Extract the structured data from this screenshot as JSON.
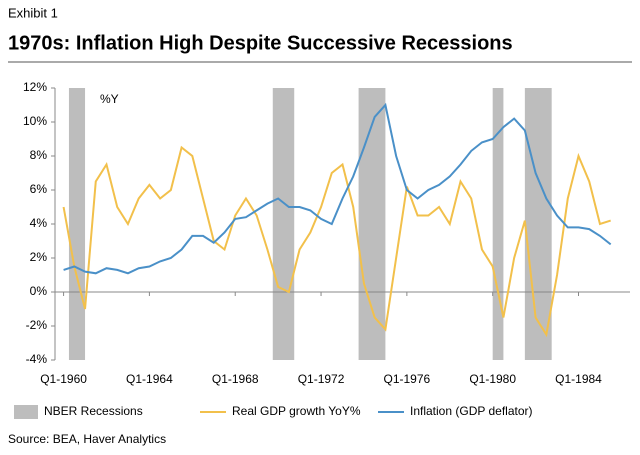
{
  "chart_data": {
    "type": "line",
    "exhibit": "Exhibit 1",
    "title": "1970s: Inflation High Despite Successive Recessions",
    "annotation": "%Y",
    "source": "Source: BEA, Haver Analytics",
    "x": [
      1960,
      1960.5,
      1961,
      1961.5,
      1962,
      1962.5,
      1963,
      1963.5,
      1964,
      1964.5,
      1965,
      1965.5,
      1966,
      1966.5,
      1967,
      1967.5,
      1968,
      1968.5,
      1969,
      1969.5,
      1970,
      1970.5,
      1971,
      1971.5,
      1972,
      1972.5,
      1973,
      1973.5,
      1974,
      1974.5,
      1975,
      1975.5,
      1976,
      1976.5,
      1977,
      1977.5,
      1978,
      1978.5,
      1979,
      1979.5,
      1980,
      1980.5,
      1981,
      1981.5,
      1982,
      1982.5,
      1983,
      1983.5,
      1984,
      1984.5,
      1985,
      1985.5
    ],
    "xlim": [
      1959.6,
      1986.4
    ],
    "xticks": [
      {
        "value": 1960,
        "label": "Q1-1960"
      },
      {
        "value": 1964,
        "label": "Q1-1964"
      },
      {
        "value": 1968,
        "label": "Q1-1968"
      },
      {
        "value": 1972,
        "label": "Q1-1972"
      },
      {
        "value": 1976,
        "label": "Q1-1976"
      },
      {
        "value": 1980,
        "label": "Q1-1980"
      },
      {
        "value": 1984,
        "label": "Q1-1984"
      }
    ],
    "ylim": [
      -4,
      12
    ],
    "yticks": [
      {
        "value": -4,
        "label": "-4%"
      },
      {
        "value": -2,
        "label": "-2%"
      },
      {
        "value": 0,
        "label": "0%"
      },
      {
        "value": 2,
        "label": "2%"
      },
      {
        "value": 4,
        "label": "4%"
      },
      {
        "value": 6,
        "label": "6%"
      },
      {
        "value": 8,
        "label": "8%"
      },
      {
        "value": 10,
        "label": "10%"
      },
      {
        "value": 12,
        "label": "12%"
      }
    ],
    "shaded_periods": {
      "name": "NBER Recessions",
      "color": "#bdbdbd",
      "ranges": [
        [
          1960.25,
          1961.0
        ],
        [
          1969.75,
          1970.75
        ],
        [
          1973.75,
          1975.0
        ],
        [
          1980.0,
          1980.5
        ],
        [
          1981.5,
          1982.75
        ]
      ]
    },
    "series": [
      {
        "name": "Real GDP growth YoY%",
        "color": "#f2c04b",
        "values": [
          5.0,
          1.5,
          -1.0,
          6.5,
          7.5,
          5.0,
          4.0,
          5.5,
          6.3,
          5.5,
          6.0,
          8.5,
          8.0,
          5.5,
          3.0,
          2.5,
          4.5,
          5.5,
          4.5,
          2.5,
          0.3,
          0.0,
          2.5,
          3.5,
          5.0,
          7.0,
          7.5,
          5.0,
          0.5,
          -1.5,
          -2.2,
          2.0,
          6.2,
          4.5,
          4.5,
          5.0,
          4.0,
          6.5,
          5.5,
          2.5,
          1.5,
          -1.5,
          2.0,
          4.2,
          -1.5,
          -2.5,
          1.0,
          5.5,
          8.0,
          6.5,
          4.0,
          4.2
        ]
      },
      {
        "name": "Inflation (GDP deflator)",
        "color": "#4a90c8",
        "values": [
          1.3,
          1.5,
          1.2,
          1.1,
          1.4,
          1.3,
          1.1,
          1.4,
          1.5,
          1.8,
          2.0,
          2.5,
          3.3,
          3.3,
          2.9,
          3.5,
          4.3,
          4.4,
          4.8,
          5.2,
          5.5,
          5.0,
          5.0,
          4.8,
          4.3,
          4.0,
          5.5,
          6.8,
          8.5,
          10.3,
          11.0,
          8.0,
          6.0,
          5.5,
          6.0,
          6.3,
          6.8,
          7.5,
          8.3,
          8.8,
          9.0,
          9.7,
          10.2,
          9.5,
          7.0,
          5.5,
          4.5,
          3.8,
          3.8,
          3.7,
          3.3,
          2.8
        ]
      }
    ]
  }
}
